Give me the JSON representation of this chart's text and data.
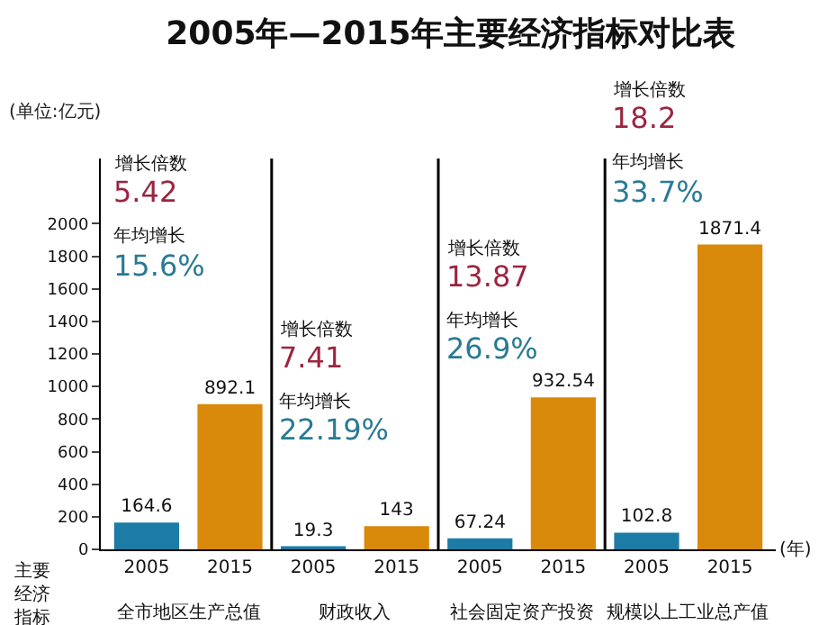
{
  "chart_data": {
    "type": "bar",
    "title": "2005年—2015年主要经济指标对比表",
    "ylabel": "主要经济指标",
    "xlabel": "(年)",
    "categories": [
      "2005",
      "2015",
      "2005",
      "2015",
      "2005",
      "2015",
      "2005",
      "2015"
    ],
    "values": [
      164.6,
      892.1,
      19.3,
      143,
      67.24,
      932.54,
      102.8,
      1871.4
    ],
    "colors": [
      "#1d7ca6",
      "#d98a0a",
      "#1d7ca6",
      "#d98a0a",
      "#1d7ca6",
      "#d98a0a",
      "#1d7ca6",
      "#d98a0a"
    ],
    "data_labels": true,
    "grid": false,
    "legend": false,
    "ylim": [
      0,
      2400
    ],
    "yticks": [
      0,
      200,
      400,
      600,
      800,
      1000,
      1200,
      1400,
      1600,
      1800,
      2000
    ],
    "annotations": [
      "(单位:亿元)",
      "全市地区生产总值",
      "财政收入",
      "社会固定资产投资",
      "规模以上工业总产值",
      "增长倍数",
      "5.42",
      "年均增长",
      "15.6%",
      "增长倍数",
      "7.41",
      "年均增长",
      "22.19%",
      "增长倍数",
      "13.87",
      "年均增长",
      "26.9%",
      "增长倍数",
      "18.2",
      "年均增长",
      "33.7%"
    ]
  }
}
